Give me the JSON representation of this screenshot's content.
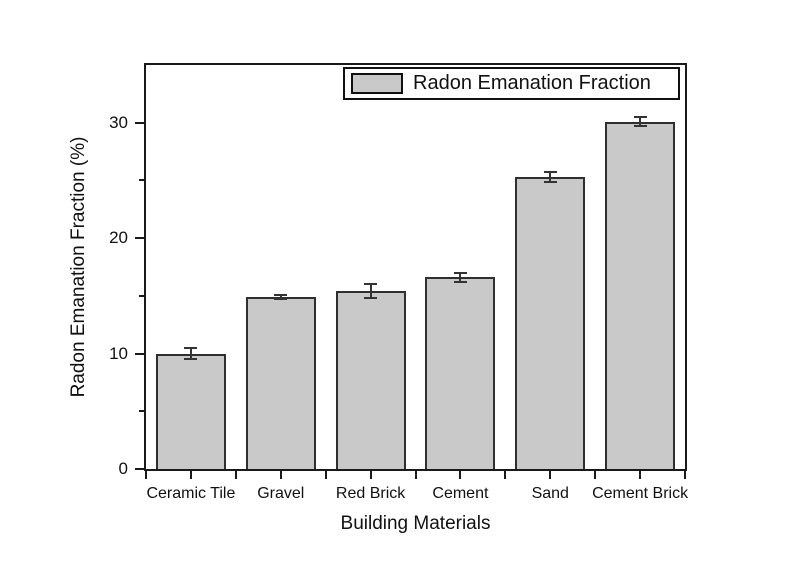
{
  "figure": {
    "background": "#ffffff",
    "frame_color": "#1a1a1a"
  },
  "legend": {
    "label": "Radon Emanation Fraction",
    "swatch_color": "#c9c9c9",
    "position": "top-center-inside"
  },
  "chart_data": {
    "type": "bar",
    "title": "",
    "categories": [
      "Ceramic Tile",
      "Gravel",
      "Red Brick",
      "Cement",
      "Sand",
      "Cement Brick"
    ],
    "values": [
      10.0,
      14.9,
      15.4,
      16.6,
      25.3,
      30.1
    ],
    "errors": [
      0.5,
      0.2,
      0.6,
      0.4,
      0.4,
      0.4
    ],
    "xlabel": "Building Materials",
    "ylabel": "Radon Emanation Fraction (%)",
    "ylim": [
      0,
      35
    ],
    "yticks_major": [
      0,
      10,
      20,
      30
    ],
    "yticks_minor": [
      5,
      15,
      25
    ],
    "legend_entries": [
      "Radon Emanation Fraction"
    ],
    "grid": false,
    "bar_fill": "#c9c9c9",
    "bar_border": "#2f2f2f",
    "error_color": "#333333"
  }
}
